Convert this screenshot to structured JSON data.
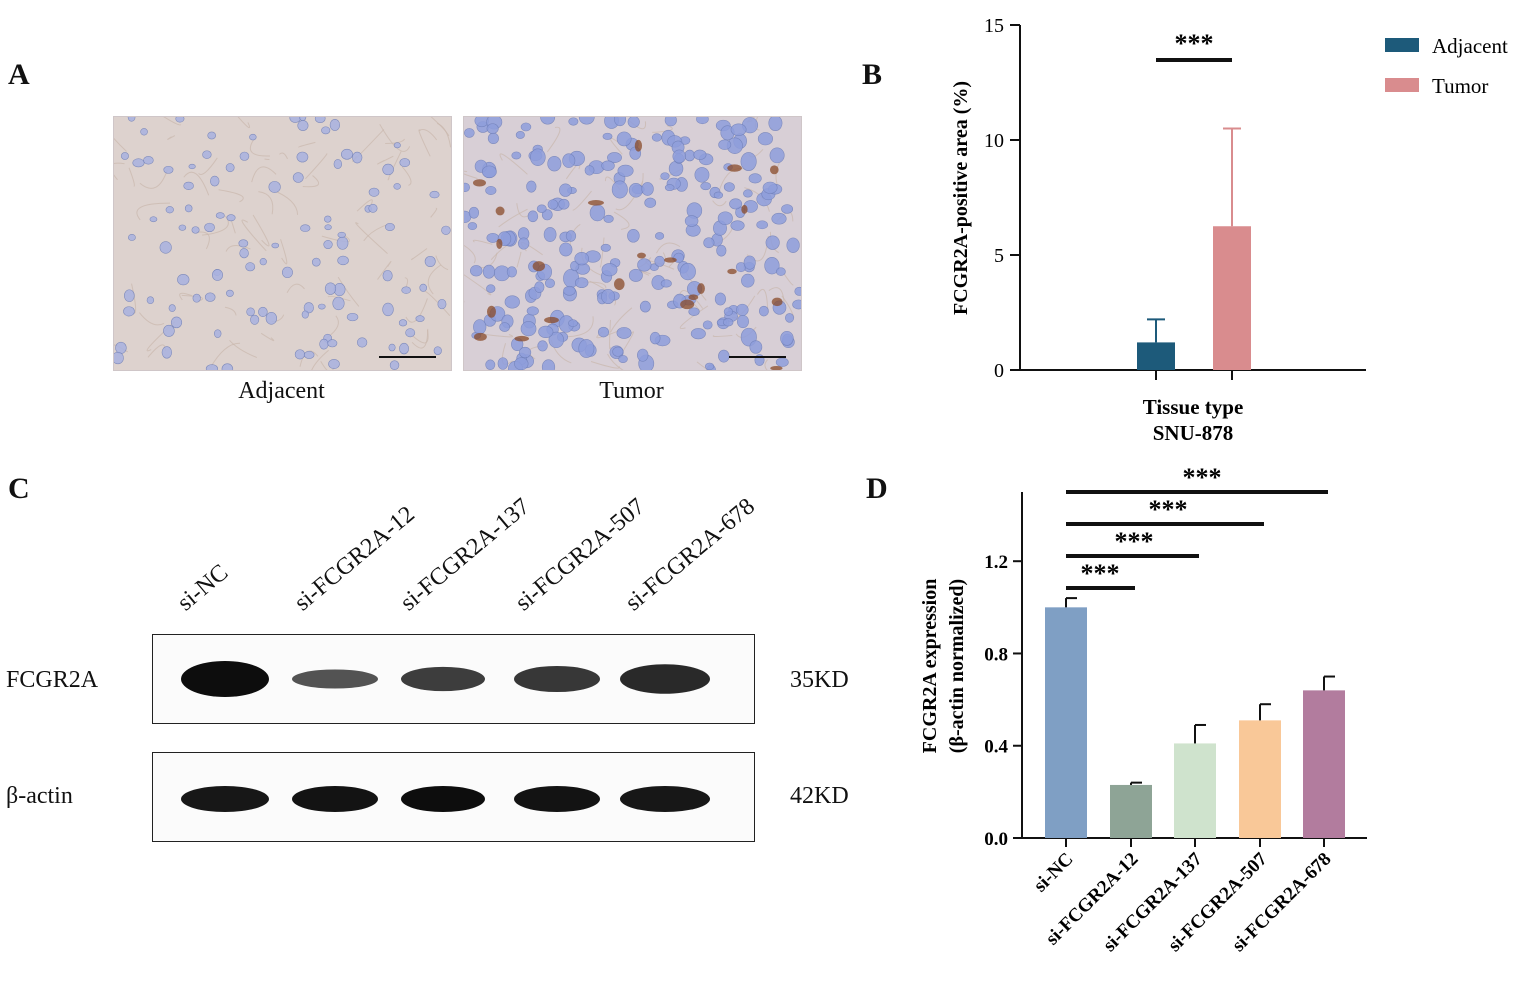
{
  "panels": {
    "a": "A",
    "b": "B",
    "c": "C",
    "d": "D"
  },
  "panel_a": {
    "images": [
      {
        "caption": "Adjacent"
      },
      {
        "caption": "Tumor"
      }
    ]
  },
  "panel_c": {
    "lanes": [
      "si-NC",
      "si-FCGR2A-12",
      "si-FCGR2A-137",
      "si-FCGR2A-507",
      "si-FCGR2A-678"
    ],
    "rows": [
      {
        "label": "FCGR2A",
        "kd": "35KD",
        "intensity": [
          1.0,
          0.35,
          0.55,
          0.62,
          0.75
        ]
      },
      {
        "label": "β-actin",
        "kd": "42KD",
        "intensity": [
          0.9,
          0.95,
          1.0,
          0.95,
          0.9
        ]
      }
    ]
  },
  "chart_data": [
    {
      "type": "bar",
      "panel": "B",
      "categories": [
        "Adjacent",
        "Tumor"
      ],
      "values": [
        1.2,
        6.25
      ],
      "errors": [
        1.0,
        4.25
      ],
      "ylim": [
        0,
        15
      ],
      "yticks": [
        "0",
        "5",
        "10",
        "15"
      ],
      "ytick_values": [
        0,
        5,
        10,
        15
      ],
      "ylabel": "FCGR2A-positive area (%)",
      "xlabel": "Tissue type",
      "xlabel2": "SNU-878",
      "legend": [
        {
          "name": "Adjacent",
          "color": "#1d5a7a"
        },
        {
          "name": "Tumor",
          "color": "#d98c8e"
        }
      ],
      "legend_position": "top-right",
      "significance": [
        {
          "from": 0,
          "to": 1,
          "label": "***"
        }
      ]
    },
    {
      "type": "bar",
      "panel": "D",
      "categories": [
        "si-NC",
        "si-FCGR2A-12",
        "si-FCGR2A-137",
        "si-FCGR2A-507",
        "si-FCGR2A-678"
      ],
      "values": [
        1.0,
        0.23,
        0.41,
        0.51,
        0.64
      ],
      "errors": [
        0.04,
        0.01,
        0.08,
        0.07,
        0.06
      ],
      "colors": [
        "#7f9fc4",
        "#8ea496",
        "#cfe3cd",
        "#f9c898",
        "#b27c9e"
      ],
      "ylim": [
        0,
        1.5
      ],
      "yticks": [
        "0.0",
        "0.4",
        "0.8",
        "1.2"
      ],
      "ytick_values": [
        0,
        0.4,
        0.8,
        1.2
      ],
      "ylabel": "FCGR2A expression",
      "ylabel2": "(β-actin normalized)",
      "significance": [
        {
          "from": 0,
          "to": 1,
          "label": "***"
        },
        {
          "from": 0,
          "to": 2,
          "label": "***"
        },
        {
          "from": 0,
          "to": 3,
          "label": "***"
        },
        {
          "from": 0,
          "to": 4,
          "label": "***"
        }
      ]
    }
  ]
}
